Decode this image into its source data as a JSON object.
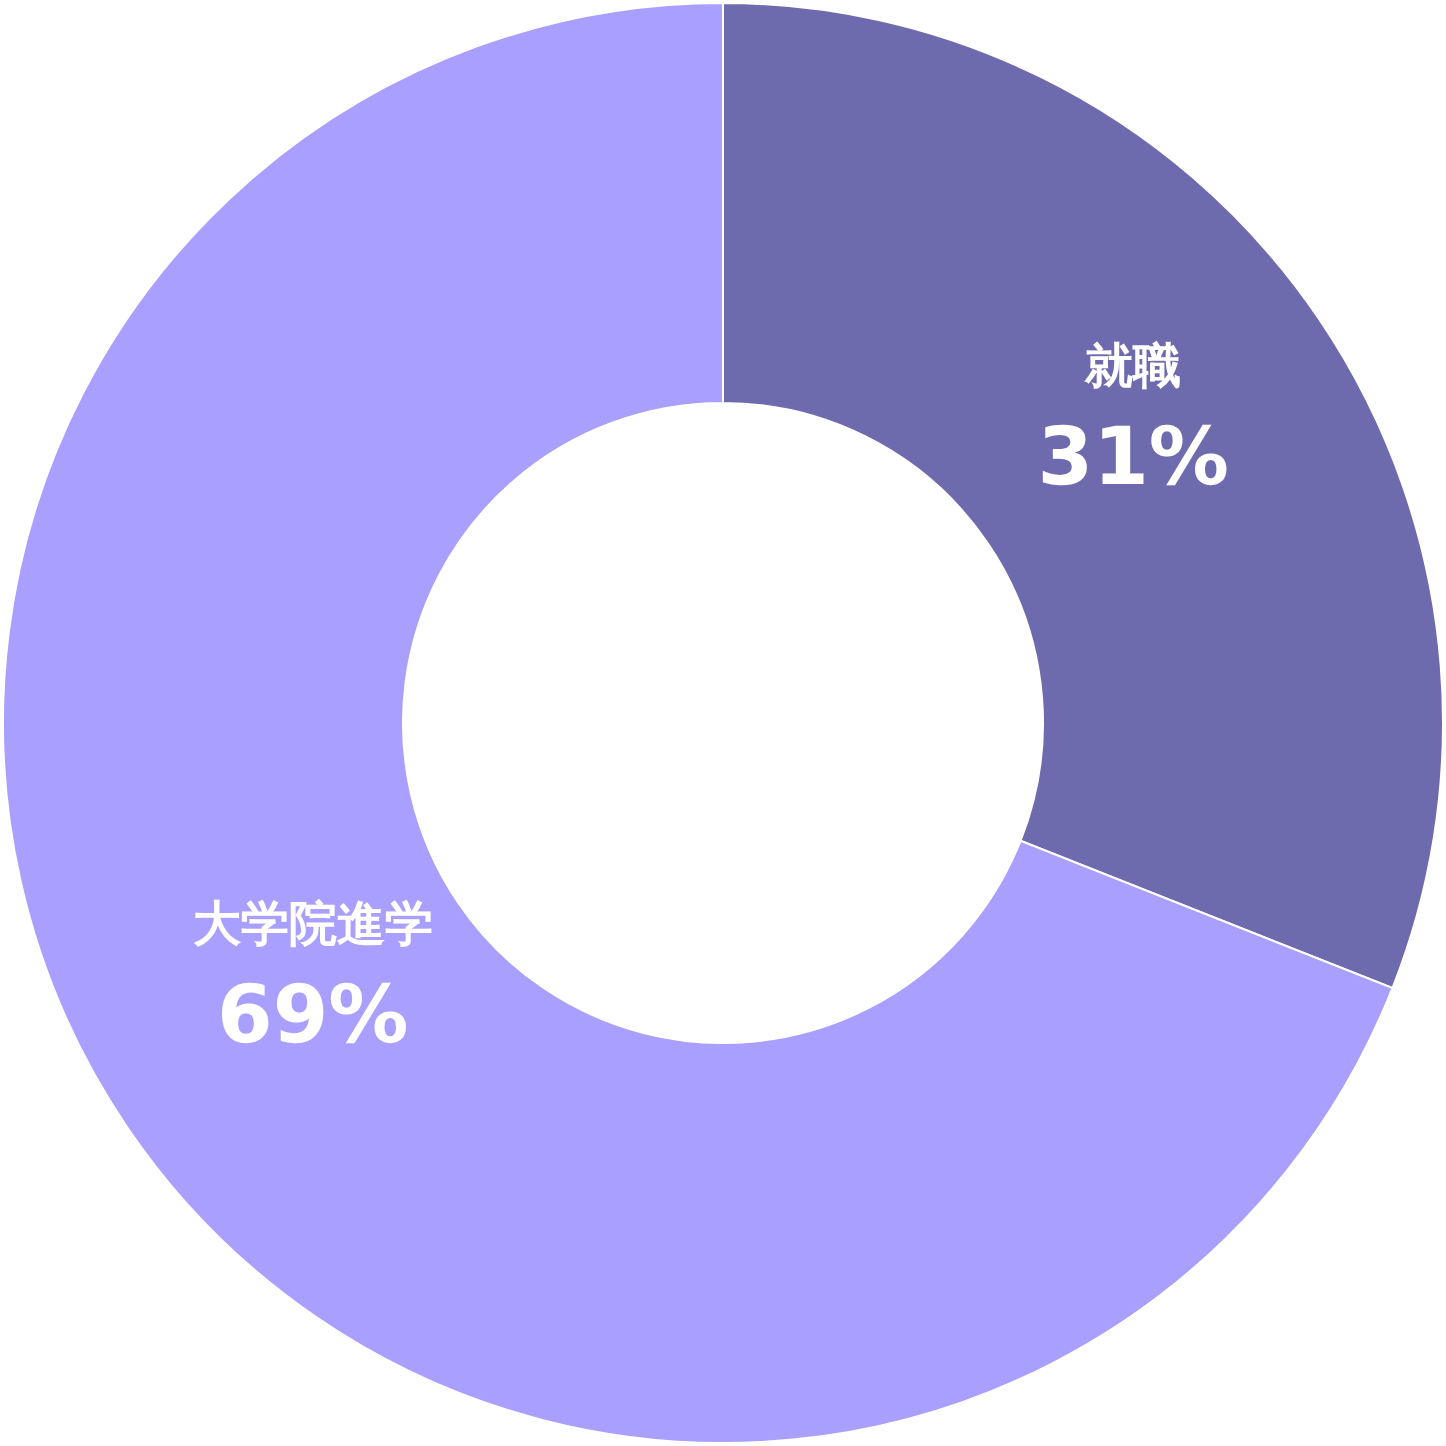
{
  "chart_data": {
    "type": "donut",
    "categories": [
      "就職",
      "大学院進学"
    ],
    "values": [
      31,
      69
    ],
    "colors": [
      "#6e6aae",
      "#a89fff"
    ],
    "value_labels": [
      "31%",
      "69%"
    ],
    "legend": false
  }
}
